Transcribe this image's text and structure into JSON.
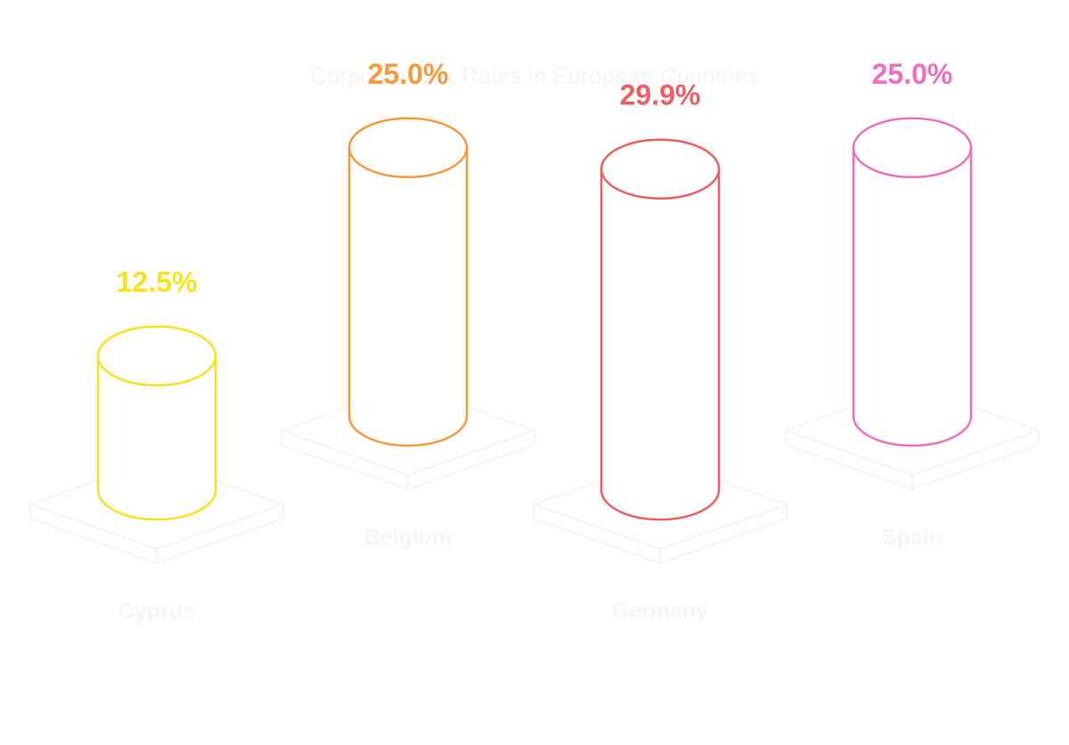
{
  "chart_data": {
    "type": "bar",
    "title": "Corporate Tax Rates in European Countries",
    "categories": [
      "Cyprus",
      "Belgium",
      "Germany",
      "Spain"
    ],
    "values": [
      12.5,
      25.0,
      29.9,
      25.0
    ],
    "value_labels": [
      "12.5%",
      "25.0%",
      "29.9%",
      "25.0%"
    ],
    "colors": [
      "#f7e21c",
      "#f79a3e",
      "#ef5f5f",
      "#ef6fbf"
    ],
    "unit": "%",
    "grid": false,
    "legend": "none"
  }
}
